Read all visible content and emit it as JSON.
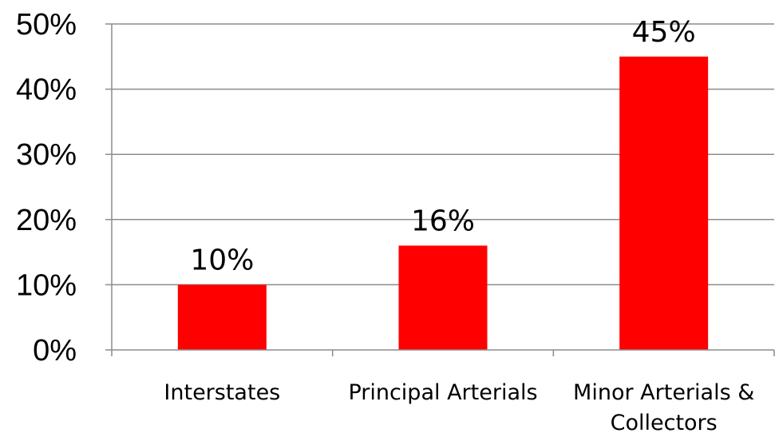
{
  "chart_data": {
    "type": "bar",
    "categories": [
      [
        "Interstates"
      ],
      [
        "Principal Arterials"
      ],
      [
        "Minor Arterials &",
        "Collectors"
      ]
    ],
    "values": [
      10,
      16,
      45
    ],
    "data_labels": [
      "10%",
      "16%",
      "45%"
    ],
    "ylim": [
      0,
      50
    ],
    "yticks": [
      "0%",
      "10%",
      "20%",
      "30%",
      "40%",
      "50%"
    ],
    "grid": true,
    "legend": "none",
    "bar_color": "#ff0000",
    "title": "",
    "xlabel": "",
    "ylabel": ""
  }
}
